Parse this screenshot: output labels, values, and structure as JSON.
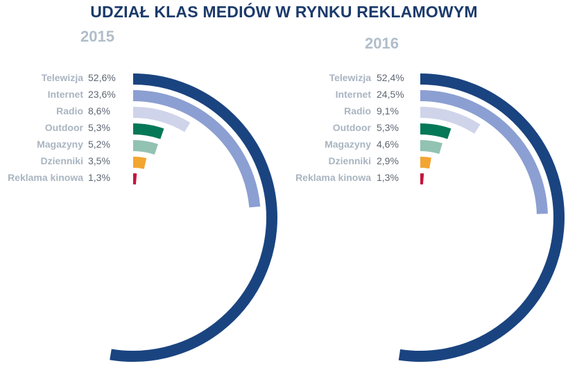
{
  "title": "UDZIAŁ KLAS MEDIÓW W RYNKU REKLAMOWYM",
  "chart_data": [
    {
      "type": "radial-bar",
      "title": "2015",
      "categories": [
        "Telewizja",
        "Internet",
        "Radio",
        "Outdoor",
        "Magazyny",
        "Dzienniki",
        "Reklama kinowa"
      ],
      "values": [
        52.6,
        23.6,
        8.6,
        5.3,
        5.2,
        3.5,
        1.3
      ],
      "value_labels": [
        "52,6%",
        "23,6%",
        "8,6%",
        "5,3%",
        "5,2%",
        "3,5%",
        "1,3%"
      ],
      "unit": "%",
      "colors": [
        "#1a4480",
        "#8c9fd2",
        "#cfd4ea",
        "#047857",
        "#92c2b2",
        "#f3a531",
        "#c4153c"
      ]
    },
    {
      "type": "radial-bar",
      "title": "2016",
      "categories": [
        "Telewizja",
        "Internet",
        "Radio",
        "Outdoor",
        "Magazyny",
        "Dzienniki",
        "Reklama kinowa"
      ],
      "values": [
        52.4,
        24.5,
        9.1,
        5.3,
        4.6,
        2.9,
        1.3
      ],
      "value_labels": [
        "52,4%",
        "24,5%",
        "9,1%",
        "5,3%",
        "4,6%",
        "2,9%",
        "1,3%"
      ],
      "unit": "%",
      "colors": [
        "#1a4480",
        "#8c9fd2",
        "#cfd4ea",
        "#047857",
        "#92c2b2",
        "#f3a531",
        "#c4153c"
      ]
    }
  ]
}
